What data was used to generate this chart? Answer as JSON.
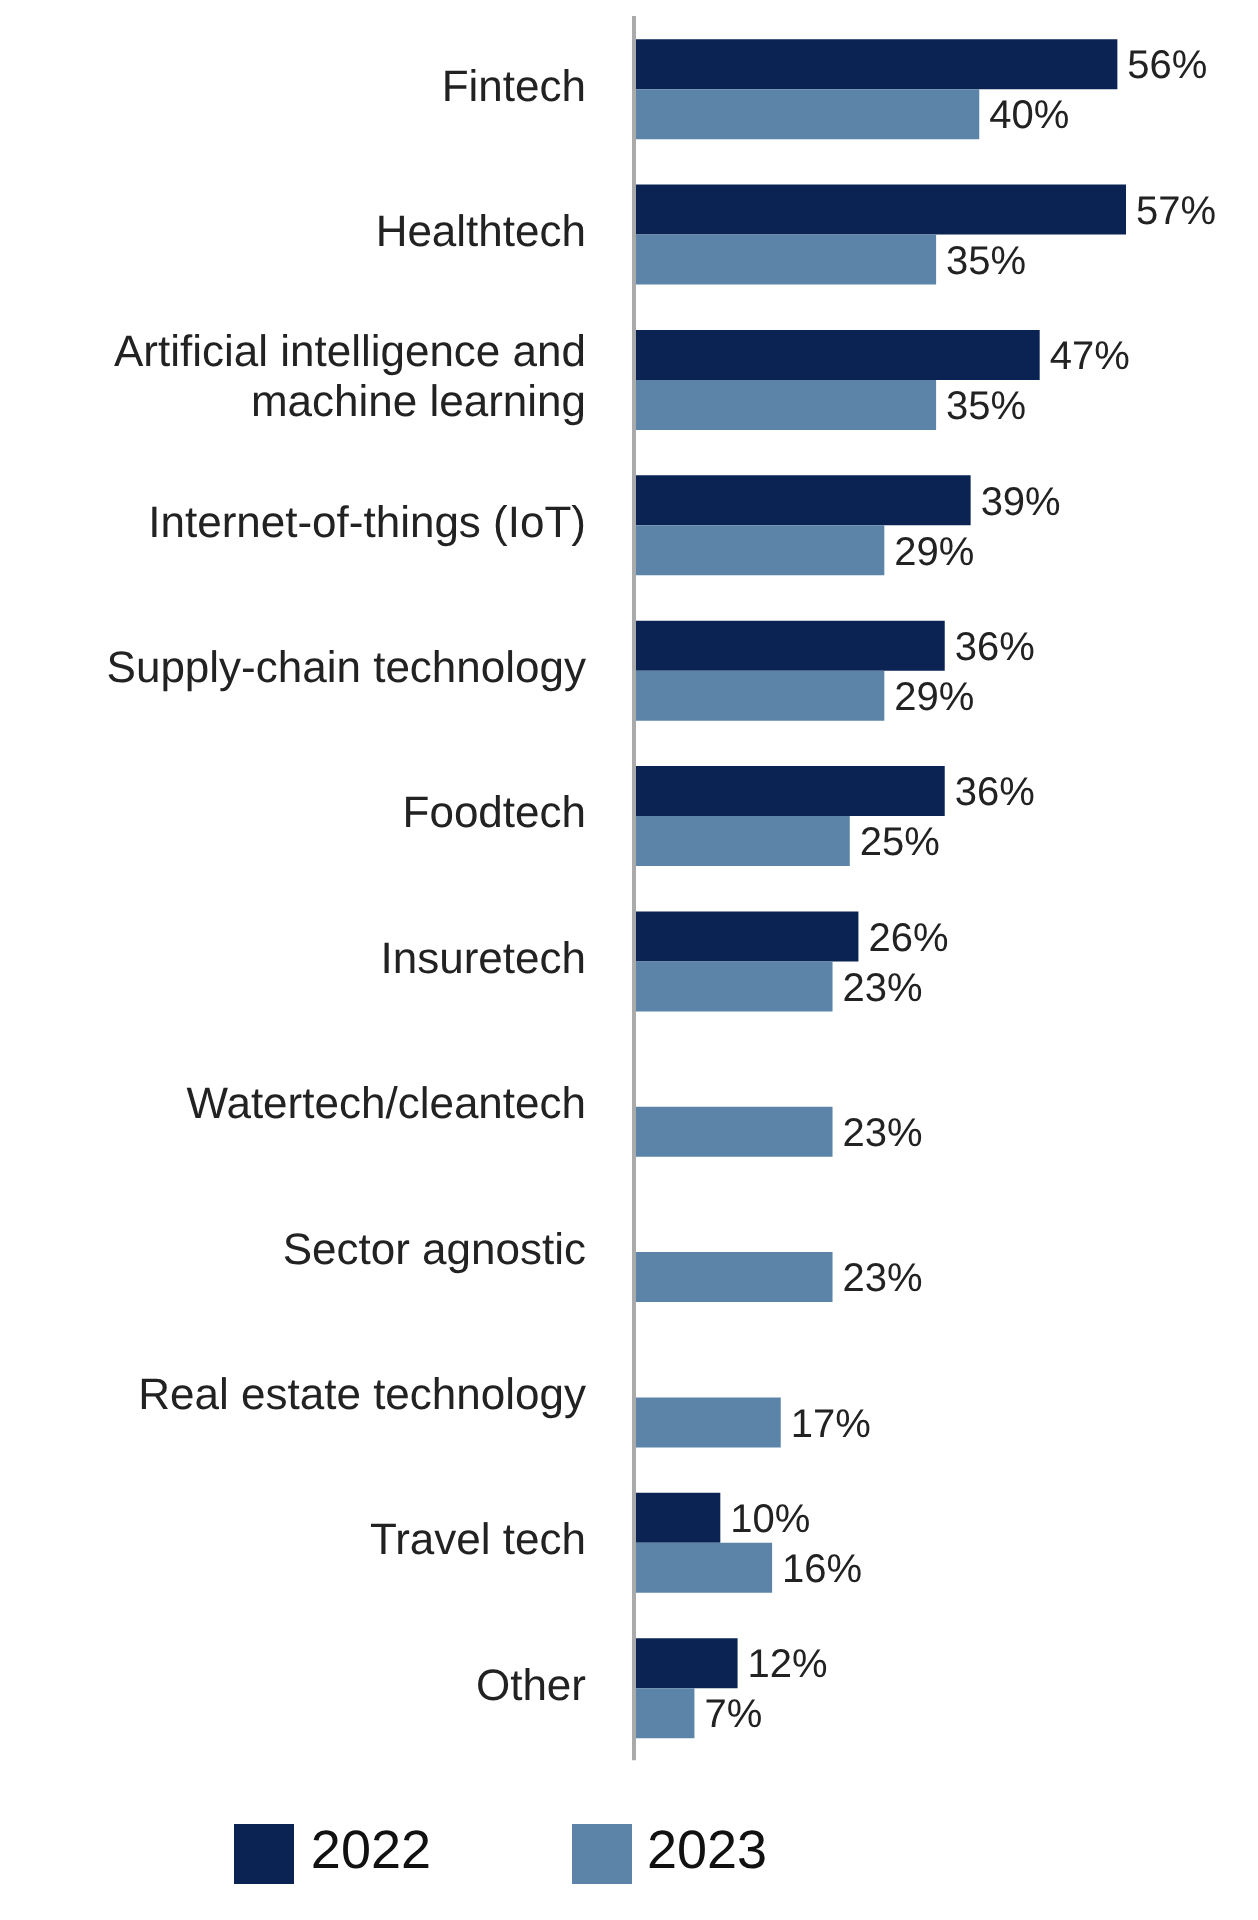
{
  "chart_data": {
    "type": "bar",
    "orientation": "horizontal",
    "categories": [
      "Fintech",
      "Healthtech",
      "Artificial intelligence and machine learning",
      "Internet-of-things (IoT)",
      "Supply-chain technology",
      "Foodtech",
      "Insuretech",
      "Watertech/cleantech",
      "Sector agnostic",
      "Real estate technology",
      "Travel tech",
      "Other"
    ],
    "series": [
      {
        "name": "2022",
        "color": "#0a2352",
        "values": [
          56,
          57,
          47,
          39,
          36,
          36,
          26,
          null,
          null,
          null,
          10,
          12
        ],
        "value_labels": [
          "56%",
          "57%",
          "47%",
          "39%",
          "36%",
          "36%",
          "26%",
          null,
          null,
          null,
          "10%",
          "12%"
        ]
      },
      {
        "name": "2023",
        "color": "#5b84a8",
        "values": [
          40,
          35,
          35,
          29,
          29,
          25,
          23,
          23,
          23,
          17,
          16,
          7
        ],
        "value_labels": [
          "40%",
          "35%",
          "35%",
          "29%",
          "29%",
          "25%",
          "23%",
          "23%",
          "23%",
          "17%",
          "16%",
          "7%"
        ]
      }
    ],
    "legend": "bottom",
    "grid": false
  }
}
